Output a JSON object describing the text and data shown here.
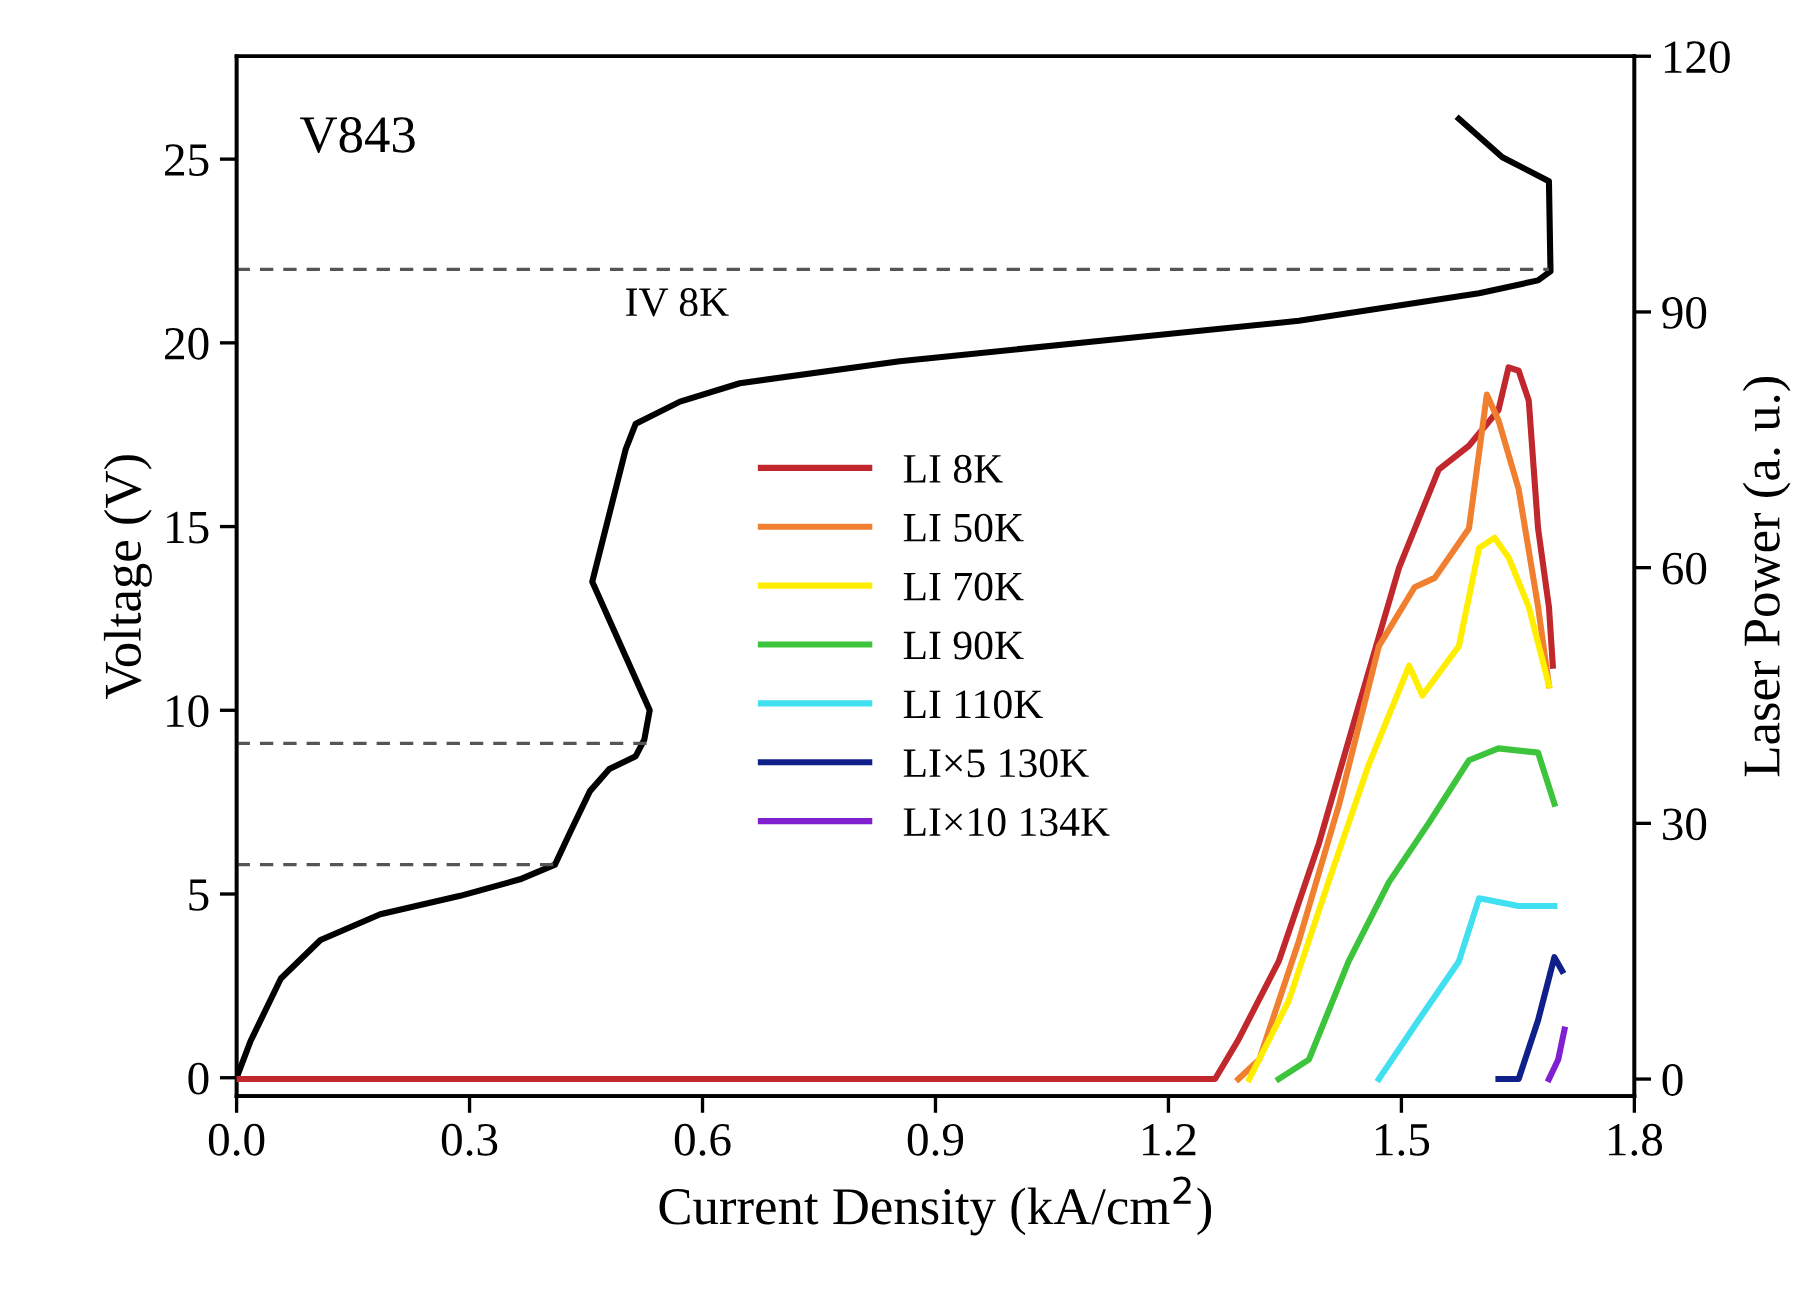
{
  "chart_data": {
    "type": "line",
    "xlabel": "Current Density (kA/cm$^{2}$)",
    "ylabel": "Voltage (V)",
    "y2label": "Laser Power (a. u.)",
    "xlim": [
      0.0,
      1.8
    ],
    "xticks": [
      {
        "value": 0,
        "label": "0.0"
      },
      0.3,
      0.6,
      0.9,
      1.2,
      1.5,
      1.8
    ],
    "ylim": [
      -0.5,
      27.8
    ],
    "yticks": [
      0,
      5,
      10,
      15,
      20,
      25
    ],
    "y2lim": [
      -2,
      120
    ],
    "y2ticks": [
      0,
      30,
      60,
      90,
      120
    ],
    "grid": false,
    "legend": "center",
    "marker": "none",
    "line_style": "solid",
    "annotations": [
      "V843",
      "IV 8K"
    ],
    "series": [
      {
        "color": "#000000",
        "x": [
          0,
          0.018,
          0.057,
          0.108,
          0.185,
          0.288,
          0.365,
          0.41,
          0.43,
          0.455,
          0.48,
          0.514,
          0.525,
          0.532,
          0.458,
          0.501,
          0.514,
          0.571,
          0.648,
          0.854,
          1.11,
          1.368,
          1.6,
          1.676,
          1.692,
          1.69,
          1.63,
          1.574
        ],
        "values": [
          0,
          1.0,
          2.7,
          3.75,
          4.45,
          4.95,
          5.4,
          5.8,
          6.7,
          7.8,
          8.4,
          8.75,
          9.2,
          10.0,
          13.5,
          17.1,
          17.8,
          18.4,
          18.9,
          19.5,
          20.05,
          20.6,
          21.35,
          21.7,
          21.95,
          24.4,
          25.05,
          26.1
        ]
      },
      {
        "color": "#555555",
        "line_style": "dashed",
        "x": [
          0,
          1.69
        ],
        "values": [
          22.0,
          22.0
        ]
      },
      {
        "color": "#555555",
        "line_style": "dashed",
        "x": [
          0,
          0.53
        ],
        "values": [
          9.1,
          9.1
        ]
      },
      {
        "color": "#555555",
        "line_style": "dashed",
        "x": [
          0,
          0.41
        ],
        "values": [
          5.8,
          5.8
        ]
      },
      {
        "name": "LI 8K",
        "color": "#c0282d",
        "axis": "y2",
        "x": [
          0,
          1.26,
          1.29,
          1.342,
          1.394,
          1.445,
          1.497,
          1.548,
          1.587,
          1.625,
          1.638,
          1.651,
          1.664,
          1.676,
          1.69,
          1.695
        ],
        "values": [
          0,
          0,
          4.6,
          13.8,
          27.7,
          43.8,
          60,
          71.5,
          74.3,
          78.5,
          83.5,
          83.1,
          79.6,
          64.6,
          55.4,
          48.5
        ]
      },
      {
        "name": "LI 50K",
        "color": "#f08030",
        "axis": "y2",
        "x": [
          1.29,
          1.317,
          1.368,
          1.42,
          1.471,
          1.517,
          1.543,
          1.587,
          1.61,
          1.625,
          1.651,
          1.676,
          1.69
        ],
        "values": [
          0,
          2.3,
          16.2,
          32.3,
          50.8,
          57.7,
          58.8,
          64.6,
          80.3,
          77.3,
          69.2,
          55.4,
          46.2
        ]
      },
      {
        "name": "LI 70K",
        "color": "#ffee00",
        "axis": "y2",
        "x": [
          1.304,
          1.355,
          1.406,
          1.458,
          1.51,
          1.527,
          1.574,
          1.6,
          1.62,
          1.638,
          1.664,
          1.69
        ],
        "values": [
          0,
          9.2,
          23.1,
          36.9,
          48.5,
          45,
          50.8,
          62.3,
          63.5,
          61.2,
          55.4,
          46.2
        ]
      },
      {
        "name": "LI 90K",
        "color": "#3cc43c",
        "axis": "y2",
        "x": [
          1.342,
          1.381,
          1.432,
          1.484,
          1.535,
          1.587,
          1.625,
          1.676,
          1.697
        ],
        "values": [
          0,
          2.3,
          13.8,
          23.1,
          30,
          37.4,
          38.8,
          38.3,
          32.3
        ]
      },
      {
        "name": "LI 110K",
        "color": "#40e0f0",
        "axis": "y2",
        "x": [
          1.471,
          1.522,
          1.574,
          1.6,
          1.651,
          1.697
        ],
        "values": [
          0,
          6.9,
          13.8,
          21.2,
          20.3,
          20.3
        ]
      },
      {
        "name": "LI×5 130K",
        "color": "#10208a",
        "axis": "y2",
        "x": [
          1.625,
          1.651,
          1.676,
          1.697,
          1.707
        ],
        "values": [
          0,
          0,
          6.9,
          14.3,
          12.7
        ]
      },
      {
        "name": "LI×10 134K",
        "color": "#8020d0",
        "axis": "y2",
        "x": [
          1.69,
          1.702,
          1.71
        ],
        "values": [
          0,
          2.3,
          5.8
        ]
      }
    ]
  }
}
